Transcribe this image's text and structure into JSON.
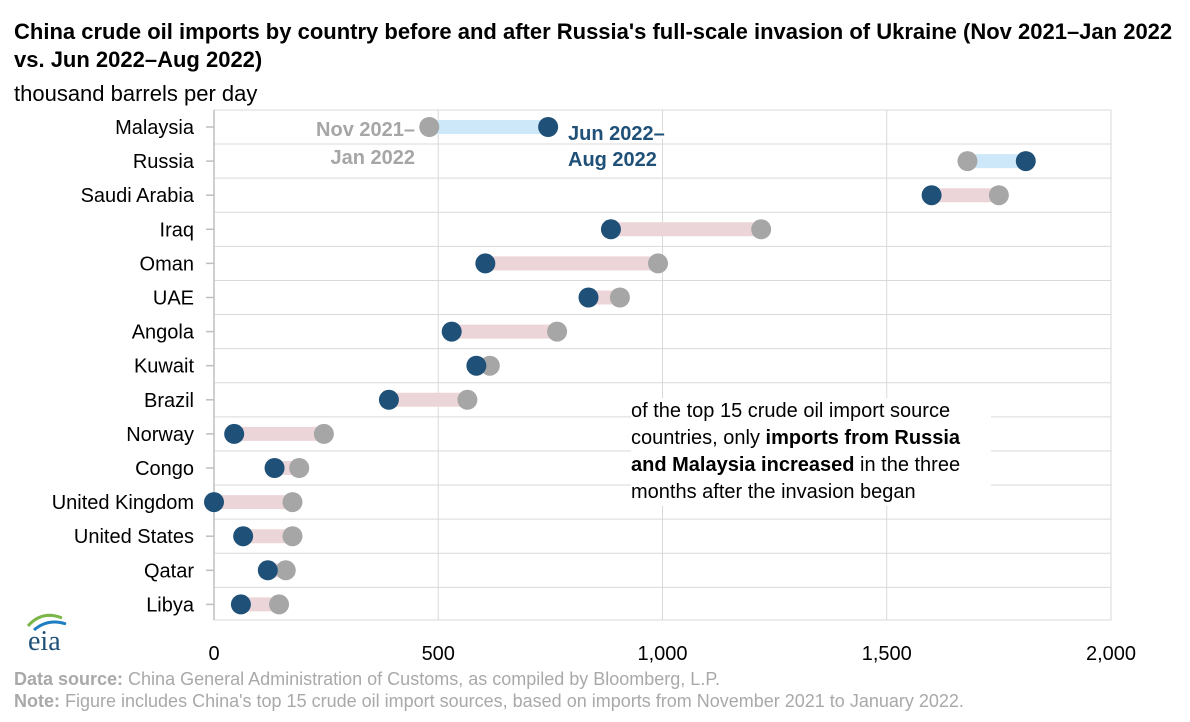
{
  "title": "China crude oil imports by country before and after Russia's full-scale invasion of Ukraine (Nov 2021–Jan 2022 vs. Jun 2022–Aug 2022)",
  "subtitle": "thousand barrels per day",
  "annotation": {
    "text_before": "of the top 15 crude oil import source countries, only ",
    "bold_1": "imports from Russia and Malaysia increased",
    "text_after": " in the three months after the invasion began"
  },
  "legend": {
    "period1_label_line1": "Nov 2021–",
    "period1_label_line2": "Jan 2022",
    "period2_label_line1": "Jun 2022–",
    "period2_label_line2": "Aug 2022"
  },
  "footer": {
    "source_label": "Data source:",
    "source_text": " China General Administration of Customs, as compiled by Bloomberg, L.P.",
    "note_label": "Note:",
    "note_text": " Figure includes China's top 15 crude oil import sources, based on imports from November 2021 to January 2022."
  },
  "logo_text": "eia",
  "colors": {
    "before": "#a6a6a6",
    "after": "#1f5078",
    "increase_bar": "#cde8f8",
    "decrease_bar": "#ecd5d8",
    "grid": "#d9d9d9",
    "footer_text": "#a9a9a9",
    "logo_arc_green": "#7ab648",
    "logo_arc_blue": "#1f7ec1"
  },
  "chart_data": {
    "type": "dumbbell",
    "xlim": [
      0,
      2000
    ],
    "xticks": [
      0,
      500,
      1000,
      1500,
      2000
    ],
    "xtick_labels": [
      "0",
      "500",
      "1,000",
      "1,500",
      "2,000"
    ],
    "grid": true,
    "categories": [
      "Malaysia",
      "Russia",
      "Saudi Arabia",
      "Iraq",
      "Oman",
      "UAE",
      "Angola",
      "Kuwait",
      "Brazil",
      "Norway",
      "Congo",
      "United Kingdom",
      "United States",
      "Qatar",
      "Libya"
    ],
    "series": [
      {
        "name": "Nov 2021–Jan 2022",
        "values": [
          480,
          1680,
          1750,
          1220,
          990,
          905,
          765,
          615,
          565,
          245,
          190,
          175,
          175,
          160,
          145
        ]
      },
      {
        "name": "Jun 2022–Aug 2022",
        "values": [
          745,
          1810,
          1600,
          885,
          605,
          835,
          530,
          585,
          390,
          45,
          135,
          0,
          65,
          120,
          60
        ]
      }
    ]
  }
}
